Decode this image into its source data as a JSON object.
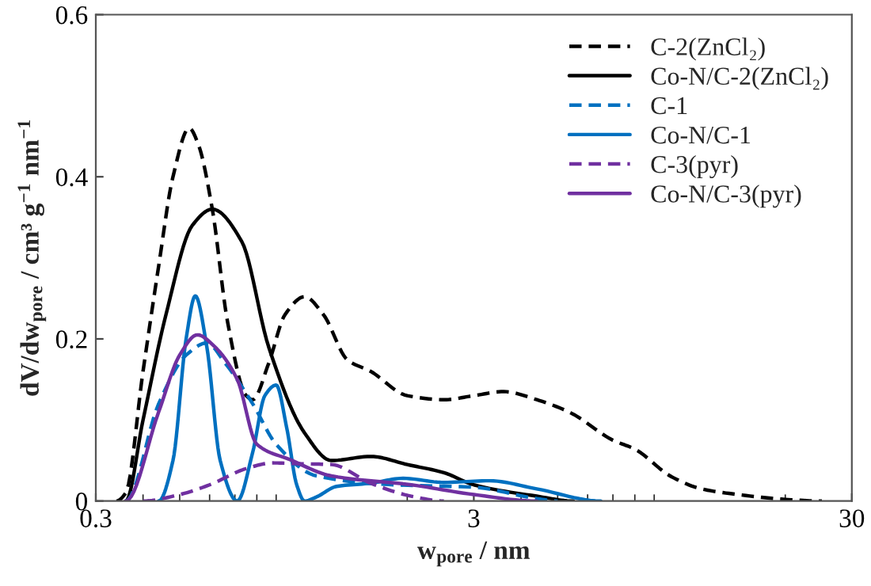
{
  "chart_data": {
    "type": "line",
    "xlabel": "w$_{pore}$ / nm",
    "ylabel": "dV/dw$_{pore}$ / cm³ g$^{−1}$ nm$^{−1}$",
    "log": "x",
    "xlim": [
      0.3,
      30
    ],
    "xticks": [
      0.3,
      3,
      30
    ],
    "ylim": [
      0,
      0.6
    ],
    "yticks": [
      0,
      0.2,
      0.4,
      0.6
    ],
    "grid": false,
    "legend": "top right",
    "series": [
      {
        "name": "C-2(ZnCl₂)",
        "color": "#000000",
        "line_style": "dashed",
        "x": [
          0.34,
          0.36,
          0.4,
          0.44,
          0.48,
          0.53,
          0.56,
          0.61,
          0.67,
          0.75,
          0.78,
          0.86,
          0.95,
          1.07,
          1.2,
          1.39,
          1.6,
          2.0,
          2.5,
          3.0,
          3.6,
          4.4,
          5.4,
          7.0,
          8.0,
          10,
          12,
          15,
          20,
          25
        ],
        "values": [
          0,
          0.01,
          0.16,
          0.29,
          0.4,
          0.46,
          0.44,
          0.36,
          0.22,
          0.13,
          0.125,
          0.17,
          0.23,
          0.252,
          0.23,
          0.174,
          0.16,
          0.13,
          0.125,
          0.13,
          0.135,
          0.125,
          0.109,
          0.075,
          0.064,
          0.03,
          0.015,
          0.008,
          0.002,
          0
        ]
      },
      {
        "name": "Co-N/C-2(ZnCl₂)",
        "color": "#000000",
        "line_style": "solid",
        "x": [
          0.36,
          0.4,
          0.46,
          0.54,
          0.61,
          0.73,
          0.86,
          1.07,
          1.26,
          1.6,
          2.0,
          2.5,
          3.0,
          4.4,
          5.5
        ],
        "values": [
          0,
          0.1,
          0.23,
          0.34,
          0.36,
          0.32,
          0.19,
          0.084,
          0.05,
          0.055,
          0.045,
          0.035,
          0.02,
          0.006,
          0
        ]
      },
      {
        "name": "C-1",
        "color": "#0070c0",
        "line_style": "dashed",
        "x": [
          0.36,
          0.44,
          0.52,
          0.59,
          0.66,
          0.78,
          0.9,
          1.15,
          1.85,
          3.0,
          4.4,
          5.0
        ],
        "values": [
          0,
          0.12,
          0.18,
          0.195,
          0.17,
          0.12,
          0.07,
          0.031,
          0.02,
          0.017,
          0.003,
          0
        ]
      },
      {
        "name": "Co-N/C-1",
        "color": "#0070c0",
        "line_style": "solid",
        "x": [
          0.44,
          0.48,
          0.52,
          0.55,
          0.59,
          0.64,
          0.71,
          0.78,
          0.84,
          0.9,
          0.96,
          1.02,
          1.07,
          1.15,
          1.3,
          1.6,
          1.95,
          2.5,
          3.3,
          4.4,
          6.5
        ],
        "values": [
          0,
          0.05,
          0.2,
          0.253,
          0.19,
          0.05,
          0,
          0.06,
          0.13,
          0.143,
          0.09,
          0.02,
          0,
          0.005,
          0.018,
          0.022,
          0.028,
          0.023,
          0.025,
          0.015,
          0
        ]
      },
      {
        "name": "C-3(pyr)",
        "color": "#7030a0",
        "line_style": "dashed",
        "x": [
          0.4,
          0.5,
          0.6,
          0.75,
          0.88,
          1.05,
          1.26,
          1.6,
          2.05,
          2.5
        ],
        "values": [
          0,
          0.008,
          0.02,
          0.04,
          0.047,
          0.046,
          0.045,
          0.022,
          0.006,
          0
        ]
      },
      {
        "name": "Co-N/C-3(pyr)",
        "color": "#7030a0",
        "line_style": "solid",
        "x": [
          0.36,
          0.44,
          0.5,
          0.557,
          0.62,
          0.71,
          0.8,
          0.98,
          1.26,
          2.05,
          3.0,
          4.4
        ],
        "values": [
          0,
          0.11,
          0.18,
          0.205,
          0.19,
          0.15,
          0.07,
          0.051,
          0.031,
          0.02,
          0.008,
          0
        ]
      }
    ]
  }
}
